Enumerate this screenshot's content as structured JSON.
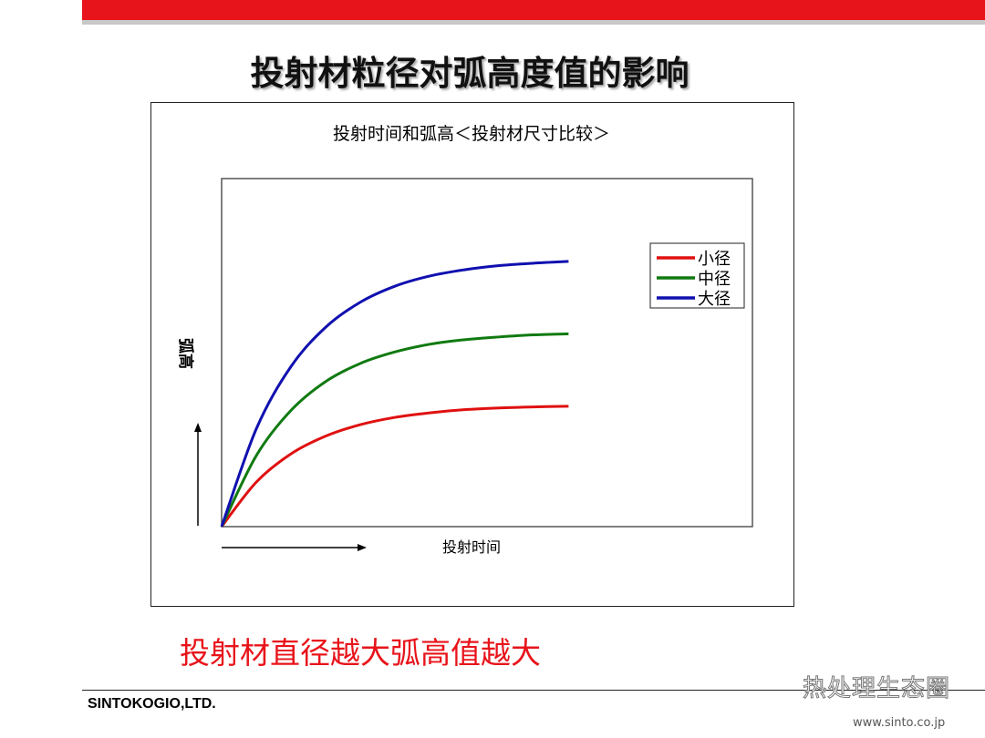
{
  "slide": {
    "title": "投射材粒径对弧高度值的影响",
    "conclusion": "投射材直径越大弧高值越大",
    "company": "SINTOKOGIO,LTD.",
    "watermark": "热处理生态圈",
    "url": "www.sinto.co.jp"
  },
  "chart_data": {
    "type": "line",
    "title": "投射时间和弧高＜投射材尺寸比较＞",
    "xlabel": "投射时间",
    "ylabel": "弧高",
    "xlim": [
      0,
      1.53
    ],
    "ylim": [
      0,
      1
    ],
    "grid": false,
    "legend": "top-right",
    "axis_ticks": false,
    "x": [
      0,
      0.1,
      0.2,
      0.3,
      0.4,
      0.5,
      0.6,
      0.7,
      0.8,
      0.9,
      1.0
    ],
    "series": [
      {
        "name": "小径",
        "color": "#e01010",
        "values": [
          0,
          0.128,
          0.209,
          0.26,
          0.293,
          0.314,
          0.327,
          0.336,
          0.341,
          0.344,
          0.346
        ]
      },
      {
        "name": "中径",
        "color": "#107a10",
        "values": [
          0,
          0.204,
          0.334,
          0.417,
          0.469,
          0.502,
          0.524,
          0.537,
          0.545,
          0.551,
          0.554
        ]
      },
      {
        "name": "大径",
        "color": "#1010b0",
        "values": [
          0,
          0.281,
          0.46,
          0.573,
          0.645,
          0.691,
          0.72,
          0.738,
          0.75,
          0.757,
          0.762
        ]
      }
    ]
  }
}
